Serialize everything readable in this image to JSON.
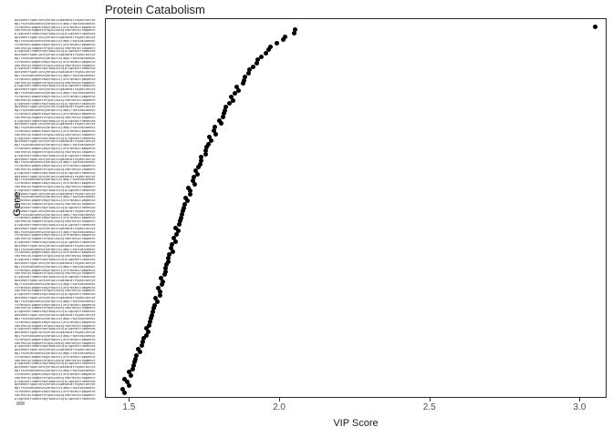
{
  "chart_data": {
    "type": "scatter",
    "title": "Protein Catabolism",
    "xlabel": "VIP Score",
    "ylabel": "Gene",
    "xlim": [
      1.42,
      3.09
    ],
    "x_ticks": [
      "1.5",
      "2.0",
      "2.5",
      "3.0"
    ],
    "x_tick_values": [
      1.5,
      2.0,
      2.5,
      3.0
    ],
    "grid": false,
    "legend": "none",
    "point_color": "#000000",
    "panel_border_color": "#2b2b2b",
    "tick_label_color": "#4d4d4d",
    "n_points": 110,
    "note": "Dot plot of genes ranked by VIP score; one outlier gene near 3.05, remaining genes form a curve from ~2.05 down to ~1.48. The y-axis lists one gene name per point, rendered too small to be legible in the source image.",
    "y_tick_labels_legible": false,
    "y_tick_placeholders": [
      "qkxvmdtrsganlbhcyefwoizupkxmvdtrsganlbhcye",
      "mglrtpnsdkvaehwcybfqozixjumglrtpnsdkvaehwc",
      "tsrdnakvlpmgehcbwyfoqzxijutsrdnakvlpmgehcb",
      "vdkrmstplnagbechfwyoizqxujvdkrmstplnagbech",
      "plsgnkdtrvmaechbyfwoqixzujplsgnkdtrvmaechb"
    ],
    "x_values": [
      3.05,
      2.05,
      2.04,
      2.02,
      2.01,
      1.99,
      1.97,
      1.96,
      1.95,
      1.94,
      1.93,
      1.92,
      1.91,
      1.9,
      1.89,
      1.89,
      1.88,
      1.87,
      1.86,
      1.86,
      1.85,
      1.84,
      1.84,
      1.83,
      1.82,
      1.82,
      1.81,
      1.81,
      1.8,
      1.8,
      1.79,
      1.78,
      1.78,
      1.77,
      1.77,
      1.76,
      1.76,
      1.75,
      1.75,
      1.74,
      1.74,
      1.73,
      1.73,
      1.72,
      1.72,
      1.72,
      1.71,
      1.71,
      1.7,
      1.7,
      1.7,
      1.69,
      1.69,
      1.68,
      1.68,
      1.68,
      1.67,
      1.67,
      1.67,
      1.66,
      1.66,
      1.66,
      1.65,
      1.65,
      1.65,
      1.64,
      1.64,
      1.64,
      1.63,
      1.63,
      1.63,
      1.62,
      1.62,
      1.62,
      1.61,
      1.61,
      1.61,
      1.6,
      1.6,
      1.6,
      1.6,
      1.59,
      1.59,
      1.58,
      1.58,
      1.58,
      1.57,
      1.57,
      1.57,
      1.56,
      1.56,
      1.56,
      1.55,
      1.55,
      1.54,
      1.54,
      1.53,
      1.53,
      1.52,
      1.52,
      1.52,
      1.51,
      1.51,
      1.5,
      1.5,
      1.49,
      1.49,
      1.49,
      1.48,
      1.48
    ]
  }
}
